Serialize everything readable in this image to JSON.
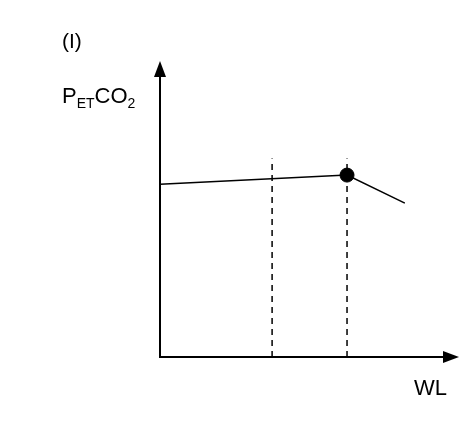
{
  "chart_data": {
    "type": "line",
    "title": "(I)",
    "y_label": [
      {
        "text": "P"
      },
      {
        "text": "ET",
        "sub": true
      },
      {
        "text": "CO"
      },
      {
        "text": "2",
        "sub": true
      }
    ],
    "x_label": "WL",
    "x": [
      0,
      63.4,
      83
    ],
    "values": [
      59.2,
      62.3,
      52.7
    ],
    "color": "#000000",
    "line_style": "solid",
    "xlim": [
      0,
      100
    ],
    "ylim": [
      0,
      100
    ],
    "xticks": [],
    "yticks": [],
    "tick_labels": false,
    "grid": false,
    "vlines": [
      38,
      63.4
    ],
    "marked_point": {
      "x": 63.4,
      "y": 62.3
    }
  }
}
